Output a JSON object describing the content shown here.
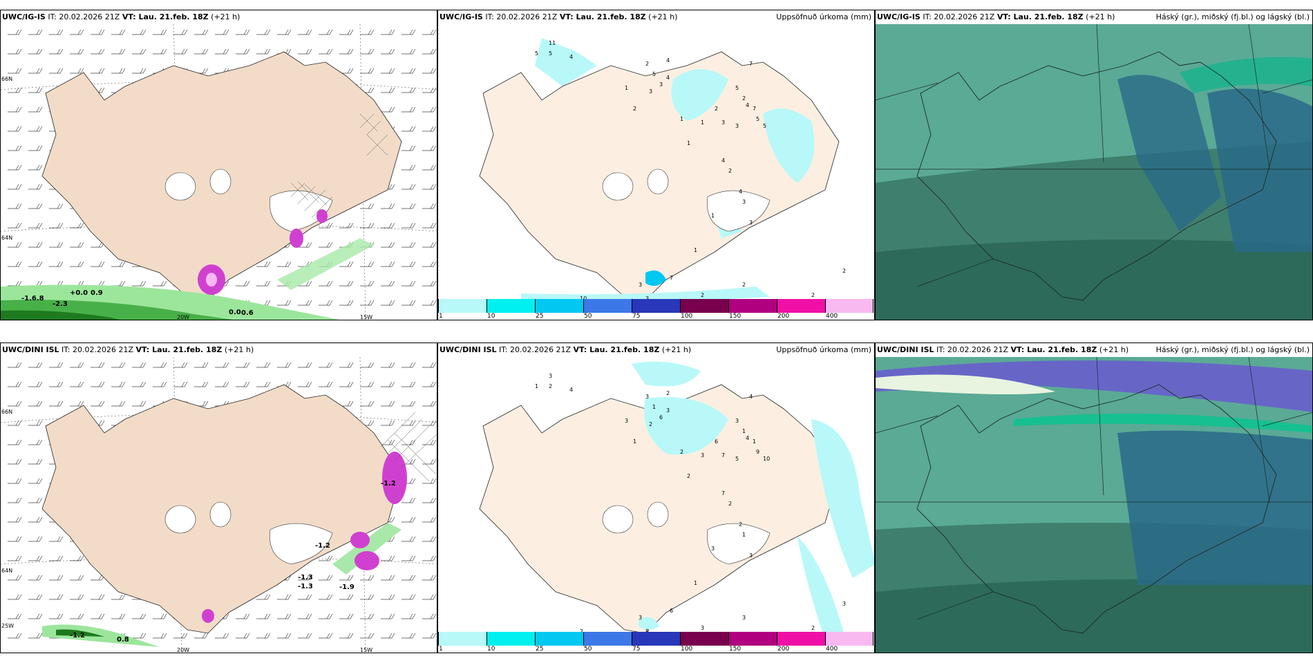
{
  "rows": [
    {
      "model": "UWC/IG-IS",
      "it": "IT: 20.02.2026 21Z",
      "vt": "VT: Lau. 21.feb. 18Z",
      "lead": "(+21 h)",
      "precip_title": "Uppsöfnuð úrkoma (mm)",
      "cloud_title": "Háský (gr.), miðský (fj.bl.) og lágský (bl.)",
      "wind_labels": [
        "-1.6.8",
        "-2.3",
        "+0.0",
        "0.9",
        "0.0",
        "0.6"
      ],
      "precip_labels": [
        "11",
        "5",
        "5",
        "4",
        "2",
        "4",
        "5",
        "4",
        "3",
        "3",
        "7",
        "1",
        "2",
        "1",
        "1",
        "1",
        "2",
        "3",
        "5",
        "2",
        "4",
        "7",
        "5",
        "5",
        "3",
        "4",
        "2",
        "4",
        "3",
        "1",
        "3",
        "1",
        "2",
        "2",
        "3",
        "10",
        "6",
        "7",
        "3",
        "2",
        "2",
        "2"
      ]
    },
    {
      "model": "UWC/DINI ISL",
      "it": "IT: 20.02.2026 21Z",
      "vt": "VT: Lau. 21.feb. 18Z",
      "lead": "(+21 h)",
      "precip_title": "Uppsöfnuð úrkoma (mm)",
      "cloud_title": "Háský (gr.), miðský (fj.bl.) og lágský (bl.)",
      "wind_labels": [
        "-1.2",
        "-1.9",
        "-1.3",
        "-1.2",
        "-1.3",
        "0.8",
        "-1.2"
      ],
      "precip_labels": [
        "3",
        "1",
        "2",
        "4",
        "3",
        "2",
        "1",
        "3",
        "2",
        "6",
        "4",
        "3",
        "1",
        "2",
        "3",
        "2",
        "6",
        "7",
        "3",
        "1",
        "4",
        "1",
        "9",
        "10",
        "5",
        "7",
        "2",
        "2",
        "1",
        "3",
        "3",
        "1",
        "3",
        "3",
        "8",
        "2",
        "5",
        "6",
        "3",
        "2",
        "2",
        "3"
      ]
    }
  ],
  "axis": {
    "lat_top": "66N",
    "lat_bottom": "64N",
    "lat_bottom2": "25W",
    "lon1": "20W",
    "lon2": "15W"
  },
  "colorbar": {
    "ticks": [
      "1",
      "10",
      "25",
      "50",
      "75",
      "100",
      "150",
      "200",
      "400"
    ],
    "colors": [
      "#b8f8f8",
      "#00f0f0",
      "#00c8f0",
      "#3c78e8",
      "#2838b8",
      "#78004c",
      "#b00080",
      "#f010a8",
      "#f8b8f0"
    ]
  },
  "colors": {
    "land": "#f2dcc8",
    "land_light": "#fcefe2",
    "wind_green": "#78d878",
    "pink": "#d040d0",
    "cloud_teal": "#5aaa96",
    "cloud_dark": "#2d6a5a"
  }
}
